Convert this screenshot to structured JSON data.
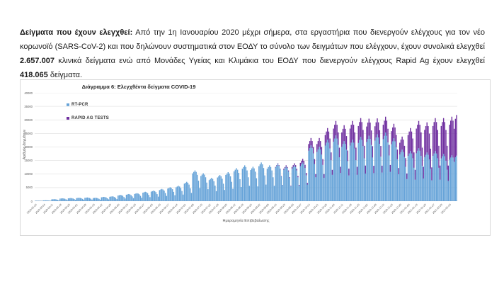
{
  "doc": {
    "lead": "Δείγματα που έχουν ελεγχθεί:",
    "part1": " Από την 1η Ιανουαρίου 2020 μέχρι σήμερα, στα εργαστήρια που διενεργούν ελέγχους για τον νέο κορωνοϊό (SARS-CoV-2) και που δηλώνουν συστηματικά στον ΕΟΔΥ το σύνολο των δειγμάτων που ελέγχουν, έχουν συνολικά ελεγχθεί ",
    "pcr_total": "2.657.007",
    "part2": " κλινικά δείγματα ενώ από Μονάδες Υγείας και Κλιμάκια του ΕΟΔΥ που διενεργούν ελέγχους Rapid Ag έχουν ελεγχθεί ",
    "rapid_total": "418.065",
    "part3": " δείγματα."
  },
  "chart_data": {
    "type": "bar",
    "stacked": true,
    "title": "Διάγραμμα 6: Ελεγχθέντα δείγματα COVID-19",
    "xlabel": "Ημερομηνία Επιβεβαίωσης",
    "ylabel": "Αριθμός δειγμάτων",
    "ylim": [
      0,
      40000
    ],
    "yticks": [
      0,
      5000,
      10000,
      15000,
      20000,
      25000,
      30000,
      35000,
      40000
    ],
    "grid": "horizontal",
    "legend_position": "top-left-vertical",
    "x_start_date": "2020-02-26",
    "x_tick_interval_days": 7,
    "x_tick_labels": [
      "2020-02-26",
      "2020-03-04",
      "2020-03-11",
      "2020-03-18",
      "2020-03-25",
      "2020-04-01",
      "2020-04-08",
      "2020-04-15",
      "2020-04-22",
      "2020-04-29",
      "2020-05-06",
      "2020-05-13",
      "2020-05-20",
      "2020-05-27",
      "2020-06-03",
      "2020-06-10",
      "2020-06-17",
      "2020-06-24",
      "2020-07-01",
      "2020-07-08",
      "2020-07-15",
      "2020-07-22",
      "2020-07-29",
      "2020-08-05",
      "2020-08-12",
      "2020-08-19",
      "2020-08-26",
      "2020-09-02",
      "2020-09-09",
      "2020-09-16",
      "2020-09-23",
      "2020-09-30",
      "2020-10-07",
      "2020-10-14",
      "2020-10-21",
      "2020-10-28",
      "2020-11-04",
      "2020-11-11",
      "2020-11-18",
      "2020-11-25",
      "2020-12-02",
      "2020-12-09",
      "2020-12-16",
      "2020-12-23",
      "2020-12-30",
      "2021-01-06",
      "2021-01-13",
      "2021-01-20",
      "2021-01-27",
      "2021-02-03",
      "2021-02-10"
    ],
    "series": [
      {
        "name": "RT-PCR",
        "color": "#66A3D8",
        "start_index": 0,
        "values": [
          143,
          150,
          158,
          150,
          135,
          105,
          68,
          285,
          300,
          315,
          300,
          270,
          210,
          135,
          665,
          700,
          735,
          700,
          630,
          490,
          315,
          950,
          1000,
          1050,
          1000,
          900,
          700,
          450,
          1045,
          1100,
          1155,
          1100,
          990,
          770,
          495,
          1140,
          1200,
          1260,
          1200,
          1080,
          840,
          540,
          1235,
          1300,
          1365,
          1300,
          1170,
          910,
          585,
          1140,
          1200,
          1260,
          1200,
          1080,
          840,
          540,
          1425,
          1500,
          1575,
          1500,
          1350,
          1050,
          675,
          1615,
          1700,
          1785,
          1700,
          1530,
          1190,
          765,
          2090,
          2200,
          2310,
          2200,
          1980,
          1540,
          990,
          2375,
          2500,
          2625,
          2500,
          2250,
          1750,
          1125,
          2660,
          2800,
          2940,
          2800,
          2520,
          1960,
          1260,
          3135,
          3300,
          3465,
          3300,
          2970,
          2310,
          1485,
          3515,
          3700,
          3885,
          3700,
          3330,
          2590,
          1665,
          4085,
          4300,
          4515,
          4300,
          3870,
          3010,
          1935,
          4655,
          4900,
          5145,
          4900,
          4410,
          3430,
          2205,
          5130,
          5400,
          5670,
          5400,
          4860,
          3780,
          2430,
          6460,
          6800,
          7140,
          6800,
          6120,
          4760,
          3060,
          10260,
          10800,
          11340,
          10800,
          9720,
          7560,
          4860,
          9310,
          9800,
          10290,
          9800,
          8820,
          6860,
          4410,
          7790,
          8200,
          8610,
          8200,
          7380,
          5740,
          3690,
          8740,
          9200,
          9660,
          9200,
          8280,
          6440,
          4140,
          9690,
          10200,
          10710,
          10200,
          9180,
          7140,
          4590,
          11020,
          11600,
          12180,
          11600,
          10440,
          8120,
          5220,
          11970,
          12600,
          13230,
          12600,
          11340,
          8820,
          5670,
          11495,
          12100,
          12705,
          12100,
          10890,
          8470,
          5445,
          12920,
          13600,
          14280,
          13600,
          12240,
          9520,
          6120,
          11970,
          12600,
          13230,
          12600,
          11340,
          8820,
          5670,
          12445,
          13100,
          13755,
          13100,
          11790,
          9170,
          5895,
          11590,
          12200,
          12810,
          12200,
          10980,
          8540,
          5490,
          11970,
          12600,
          13230,
          12600,
          11340,
          8820,
          5670,
          12920,
          13600,
          14280,
          13600,
          12240,
          9520,
          6120,
          18620,
          19600,
          20580,
          19600,
          17640,
          13720,
          8820,
          18145,
          19100,
          20055,
          19100,
          17190,
          13370,
          8595,
          20520,
          21600,
          22680,
          21600,
          19440,
          15120,
          9720,
          21945,
          23100,
          24255,
          23100,
          20790,
          16170,
          10395,
          20045,
          21100,
          22155,
          21100,
          18990,
          14770,
          9495,
          20520,
          21600,
          22680,
          21600,
          19440,
          15120,
          9720,
          21470,
          22600,
          23730,
          22600,
          20340,
          15820,
          10170,
          21850,
          23000,
          24150,
          23000,
          20700,
          16100,
          10350,
          22325,
          23500,
          24675,
          23500,
          21150,
          16450,
          10575,
          22895,
          24100,
          25305,
          24100,
          21690,
          16870,
          10845,
          20995,
          22100,
          23205,
          22100,
          19890,
          15470,
          9945,
          17195,
          18100,
          19005,
          18100,
          16290,
          12670,
          8145,
          16720,
          17600,
          18480,
          17600,
          15840,
          12320,
          7920,
          17670,
          18600,
          19530,
          18600,
          16740,
          13020,
          8370,
          16245,
          17100,
          17955,
          17100,
          15390,
          11970,
          7695,
          16720,
          17600,
          18480,
          17600,
          15840,
          12320,
          7920,
          15770,
          16600,
          17430,
          16600,
          14940,
          11620,
          7470,
          15295,
          16100,
          16905,
          16100,
          14490,
          16200,
          16800
        ]
      },
      {
        "name": "RAPID AG TESTS",
        "color": "#7030A0",
        "start_index": 203,
        "values": [
          190,
          200,
          210,
          200,
          180,
          140,
          90,
          380,
          400,
          420,
          400,
          360,
          280,
          180,
          665,
          700,
          735,
          700,
          630,
          490,
          315,
          1235,
          1300,
          1365,
          1300,
          1170,
          910,
          585,
          2470,
          2600,
          2730,
          2600,
          2340,
          1820,
          1170,
          2945,
          3100,
          3255,
          3100,
          2790,
          2170,
          1395,
          3895,
          4100,
          4305,
          4100,
          3690,
          2870,
          1845,
          4845,
          5100,
          5355,
          5100,
          4590,
          3570,
          2295,
          5320,
          5600,
          5880,
          5600,
          5040,
          3920,
          2520,
          6270,
          6600,
          6930,
          6600,
          5940,
          4620,
          2970,
          6270,
          6600,
          6930,
          6600,
          5940,
          4620,
          2970,
          5700,
          6000,
          6300,
          6000,
          5400,
          4200,
          2700,
          5320,
          5600,
          5880,
          5600,
          5040,
          3920,
          2520,
          5320,
          5600,
          5880,
          5600,
          5040,
          3920,
          2520,
          4845,
          5100,
          5355,
          5100,
          4590,
          3570,
          2295,
          4370,
          4600,
          4830,
          4600,
          4140,
          3220,
          2070,
          7695,
          8100,
          8505,
          8100,
          7290,
          5670,
          3645,
          9120,
          9600,
          10080,
          9600,
          8640,
          6720,
          4320,
          10070,
          10600,
          11130,
          10600,
          9540,
          7420,
          4770,
          11020,
          11600,
          12180,
          11600,
          10440,
          8120,
          5220,
          11970,
          12600,
          13230,
          12600,
          11340,
          8820,
          5670,
          12920,
          13600,
          14280,
          13600,
          12240,
          14200,
          15000
        ]
      }
    ]
  }
}
